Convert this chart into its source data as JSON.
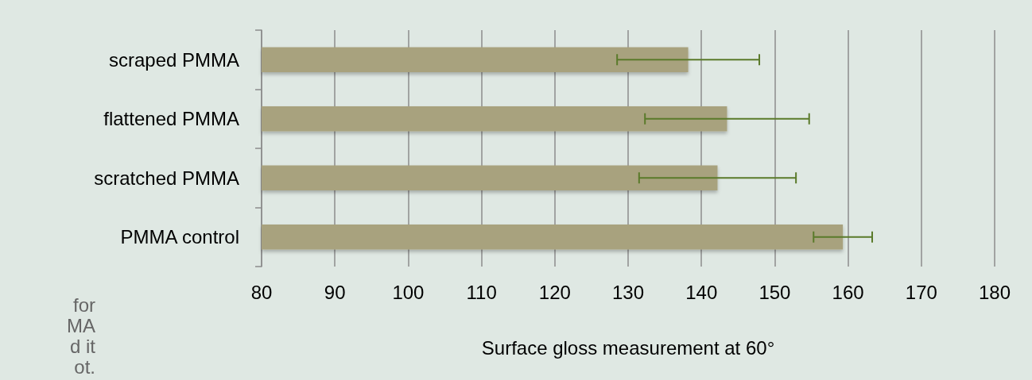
{
  "chart_data": {
    "type": "bar",
    "orientation": "horizontal",
    "xlabel": "Surface gloss measurement at 60°",
    "categories": [
      "scraped PMMA",
      "flattened PMMA",
      "scratched PMMA",
      "PMMA control"
    ],
    "values": [
      138.2,
      143.5,
      142.2,
      159.3
    ],
    "errors": [
      9.7,
      11.2,
      10.7,
      4.0
    ],
    "color": "#a8a27e",
    "xlim": [
      80,
      180
    ],
    "xticks": [
      80,
      90,
      100,
      110,
      120,
      130,
      140,
      150,
      160,
      170,
      180
    ],
    "grid": "x",
    "annotations": [
      "for",
      "MA",
      "d it",
      "ot."
    ]
  }
}
